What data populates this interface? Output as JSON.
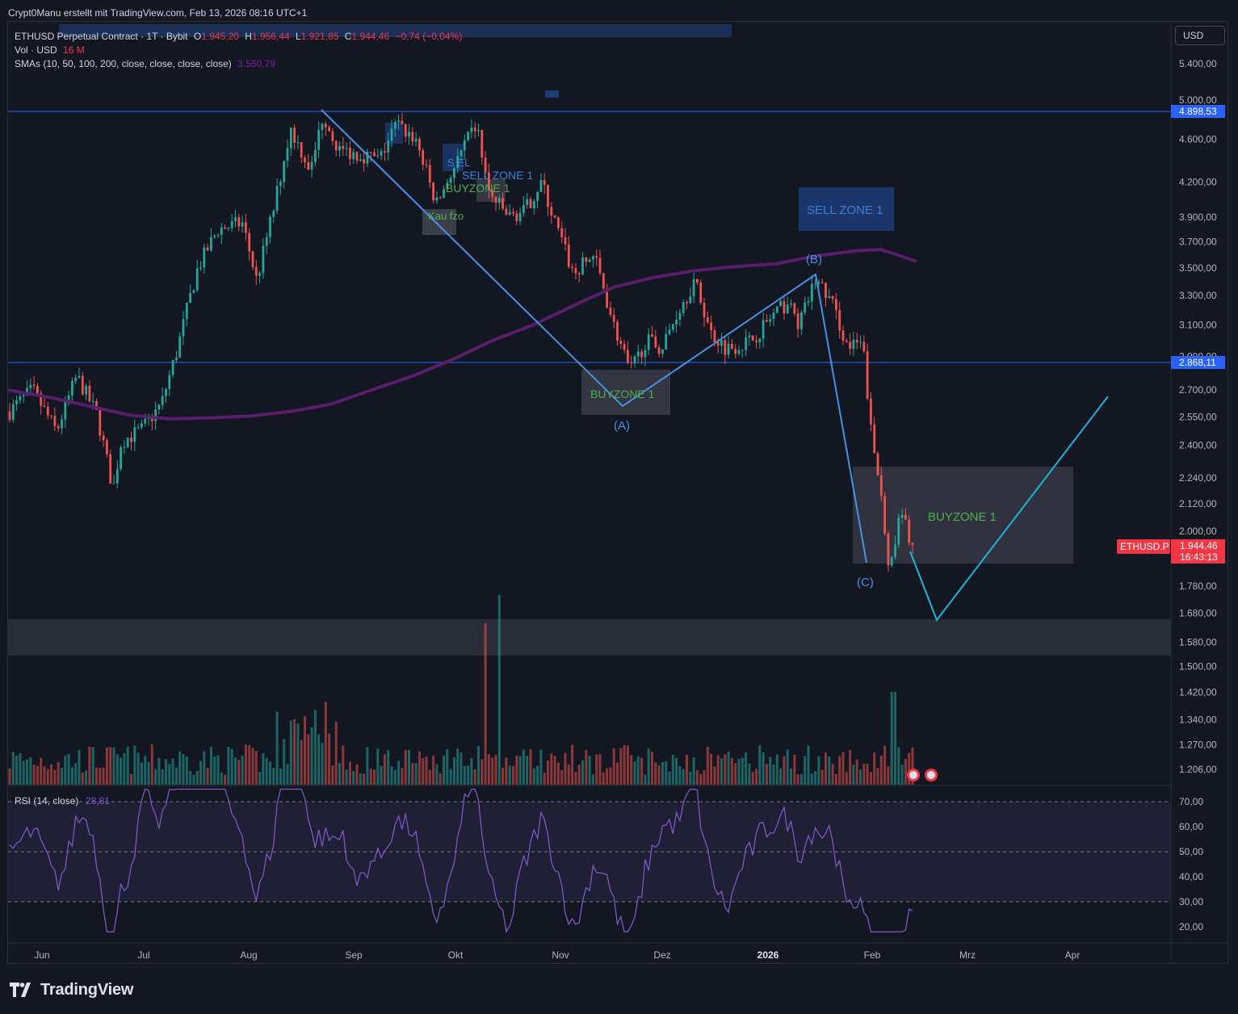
{
  "credit": "Crypt0Manu erstellt mit TradingView.com, Feb 13, 2026 08:16 UTC+1",
  "legend": {
    "symbol": "ETHUSD Perpetual Contract · 1T · Bybit",
    "open_label": "O",
    "open": "1.945,20",
    "high_label": "H",
    "high": "1.956,44",
    "low_label": "L",
    "low": "1.921,85",
    "close_label": "C",
    "close": "1.944,46",
    "change": "−0,74 (−0,04%)",
    "vol_label": "Vol · USD",
    "vol_value": "16 M",
    "sma_label": "SMAs (10, 50, 100, 200, close, close, close, close)",
    "sma_value": "3.560,79"
  },
  "currency_button": "USD",
  "branding": "TradingView",
  "colors": {
    "background": "#131722",
    "up": "#26a69a",
    "down": "#ef5350",
    "sma": "#5d1f6e",
    "hline": "#2962ff",
    "wave": "#4a90e2",
    "projection": "#1cb5d8",
    "rsi": "#7e57c2",
    "last_price": "#f23645",
    "buyzone_text": "#4caf50",
    "sellzone_text": "#3d7fd6"
  },
  "chart_data": {
    "type": "candlestick",
    "price_axis_ticks": [
      "5.400,00",
      "5.000,00",
      "4.600,00",
      "4.200,00",
      "3.900,00",
      "3.700,00",
      "3.500,00",
      "3.300,00",
      "3.100,00",
      "2.900,00",
      "2.700,00",
      "2.550,00",
      "2.400,00",
      "2.240,00",
      "2.120,00",
      "2.000,00",
      "1.780,00",
      "1.680,00",
      "1.580,00",
      "1.500,00",
      "1.420,00",
      "1.340,00",
      "1.270,00",
      "1.206,00"
    ],
    "price_labels": [
      {
        "value": "4.898,53"
      },
      {
        "value": "2.868,11"
      }
    ],
    "last_price": {
      "symbol": "ETHUSD.P",
      "value": "1.944,46",
      "countdown": "16:43:13"
    },
    "time_axis": [
      "Jun",
      "Jul",
      "Aug",
      "Sep",
      "Okt",
      "Nov",
      "Dez",
      "2026",
      "Feb",
      "Mrz",
      "Apr"
    ],
    "horizontal_lines": [
      4898.53,
      2868.11
    ],
    "sma_200": [
      [
        0,
        2700
      ],
      [
        50,
        2660
      ],
      [
        100,
        2610
      ],
      [
        150,
        2560
      ],
      [
        200,
        2540
      ],
      [
        250,
        2545
      ],
      [
        300,
        2555
      ],
      [
        350,
        2580
      ],
      [
        400,
        2620
      ],
      [
        450,
        2700
      ],
      [
        500,
        2780
      ],
      [
        550,
        2880
      ],
      [
        600,
        3000
      ],
      [
        650,
        3100
      ],
      [
        700,
        3230
      ],
      [
        750,
        3360
      ],
      [
        800,
        3430
      ],
      [
        850,
        3480
      ],
      [
        900,
        3510
      ],
      [
        950,
        3530
      ],
      [
        1000,
        3590
      ],
      [
        1050,
        3630
      ],
      [
        1080,
        3640
      ],
      [
        1100,
        3600
      ],
      [
        1125,
        3550
      ]
    ],
    "annotations": [
      {
        "text": "SELL ZONE 1",
        "kind": "sell"
      },
      {
        "text": "BUYZONE 1",
        "kind": "buy"
      },
      {
        "text": "BUYZONE 1",
        "kind": "buy"
      },
      {
        "text": "SELL ZONE 1",
        "kind": "sell"
      },
      {
        "text": "BUYZONE 1",
        "kind": "buy"
      },
      {
        "text": "Kau fzo",
        "kind": "buy"
      },
      {
        "text": "S EL",
        "kind": "sell"
      }
    ],
    "wave_labels": [
      "(A)",
      "(B)",
      "(C)"
    ],
    "elliott_wave": [
      [
        4900,
        0
      ],
      [
        2600,
        0
      ],
      [
        3460,
        0
      ],
      [
        1820,
        0
      ]
    ],
    "projection": [
      [
        1940,
        0
      ],
      [
        1660,
        0
      ],
      [
        2700,
        0
      ]
    ],
    "volume_axis_max": 1,
    "rsi": {
      "label": "RSI (14, close)",
      "value": "28,81",
      "ticks": [
        "70,00",
        "60,00",
        "50,00",
        "40,00",
        "30,00",
        "20,00"
      ],
      "levels": [
        70,
        50,
        30
      ]
    }
  }
}
